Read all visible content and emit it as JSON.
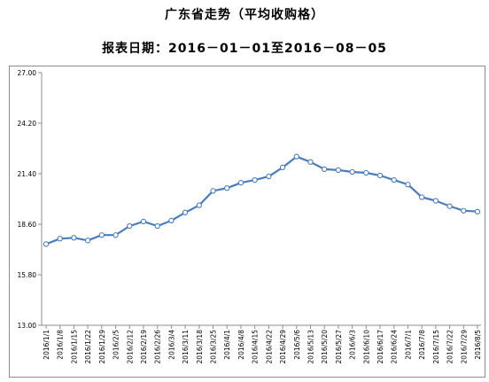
{
  "header": {
    "title": "广东省走势（平均收购格）",
    "subtitle": "报表日期：2016－01－01至2016－08－05"
  },
  "chart_data": {
    "type": "line",
    "title": "广东省走势（平均收购格）",
    "subtitle": "报表日期：2016－01－01至2016－08－05",
    "xlabel": "",
    "ylabel": "",
    "ylim": [
      13.0,
      27.0
    ],
    "yticks": [
      "13.00",
      "15.80",
      "18.60",
      "21.40",
      "24.20",
      "27.00"
    ],
    "grid": false,
    "legend": "none",
    "colors": {
      "line": "#4a7ebb",
      "marker_fill": "#ffffff",
      "axis": "#8c8c8c"
    },
    "categories": [
      "2016/1/1",
      "2016/1/8",
      "2016/1/15",
      "2016/1/22",
      "2016/1/29",
      "2016/2/5",
      "2016/2/12",
      "2016/2/19",
      "2016/2/26",
      "2016/3/4",
      "2016/3/11",
      "2016/3/18",
      "2016/3/25",
      "2016/4/1",
      "2016/4/8",
      "2016/4/15",
      "2016/4/22",
      "2016/4/29",
      "2016/5/6",
      "2016/5/13",
      "2016/5/20",
      "2016/5/27",
      "2016/6/3",
      "2016/6/10",
      "2016/6/17",
      "2016/6/24",
      "2016/7/1",
      "2016/7/8",
      "2016/7/15",
      "2016/7/22",
      "2016/7/29",
      "2016/8/5"
    ],
    "series": [
      {
        "values": [
          17.5,
          17.8,
          17.85,
          17.7,
          18.0,
          18.0,
          18.5,
          18.75,
          18.5,
          18.8,
          19.25,
          19.65,
          20.45,
          20.6,
          20.9,
          21.05,
          21.25,
          21.75,
          22.35,
          22.05,
          21.65,
          21.6,
          21.5,
          21.45,
          21.3,
          21.05,
          20.8,
          20.1,
          19.9,
          19.6,
          19.35,
          19.3
        ]
      }
    ]
  }
}
